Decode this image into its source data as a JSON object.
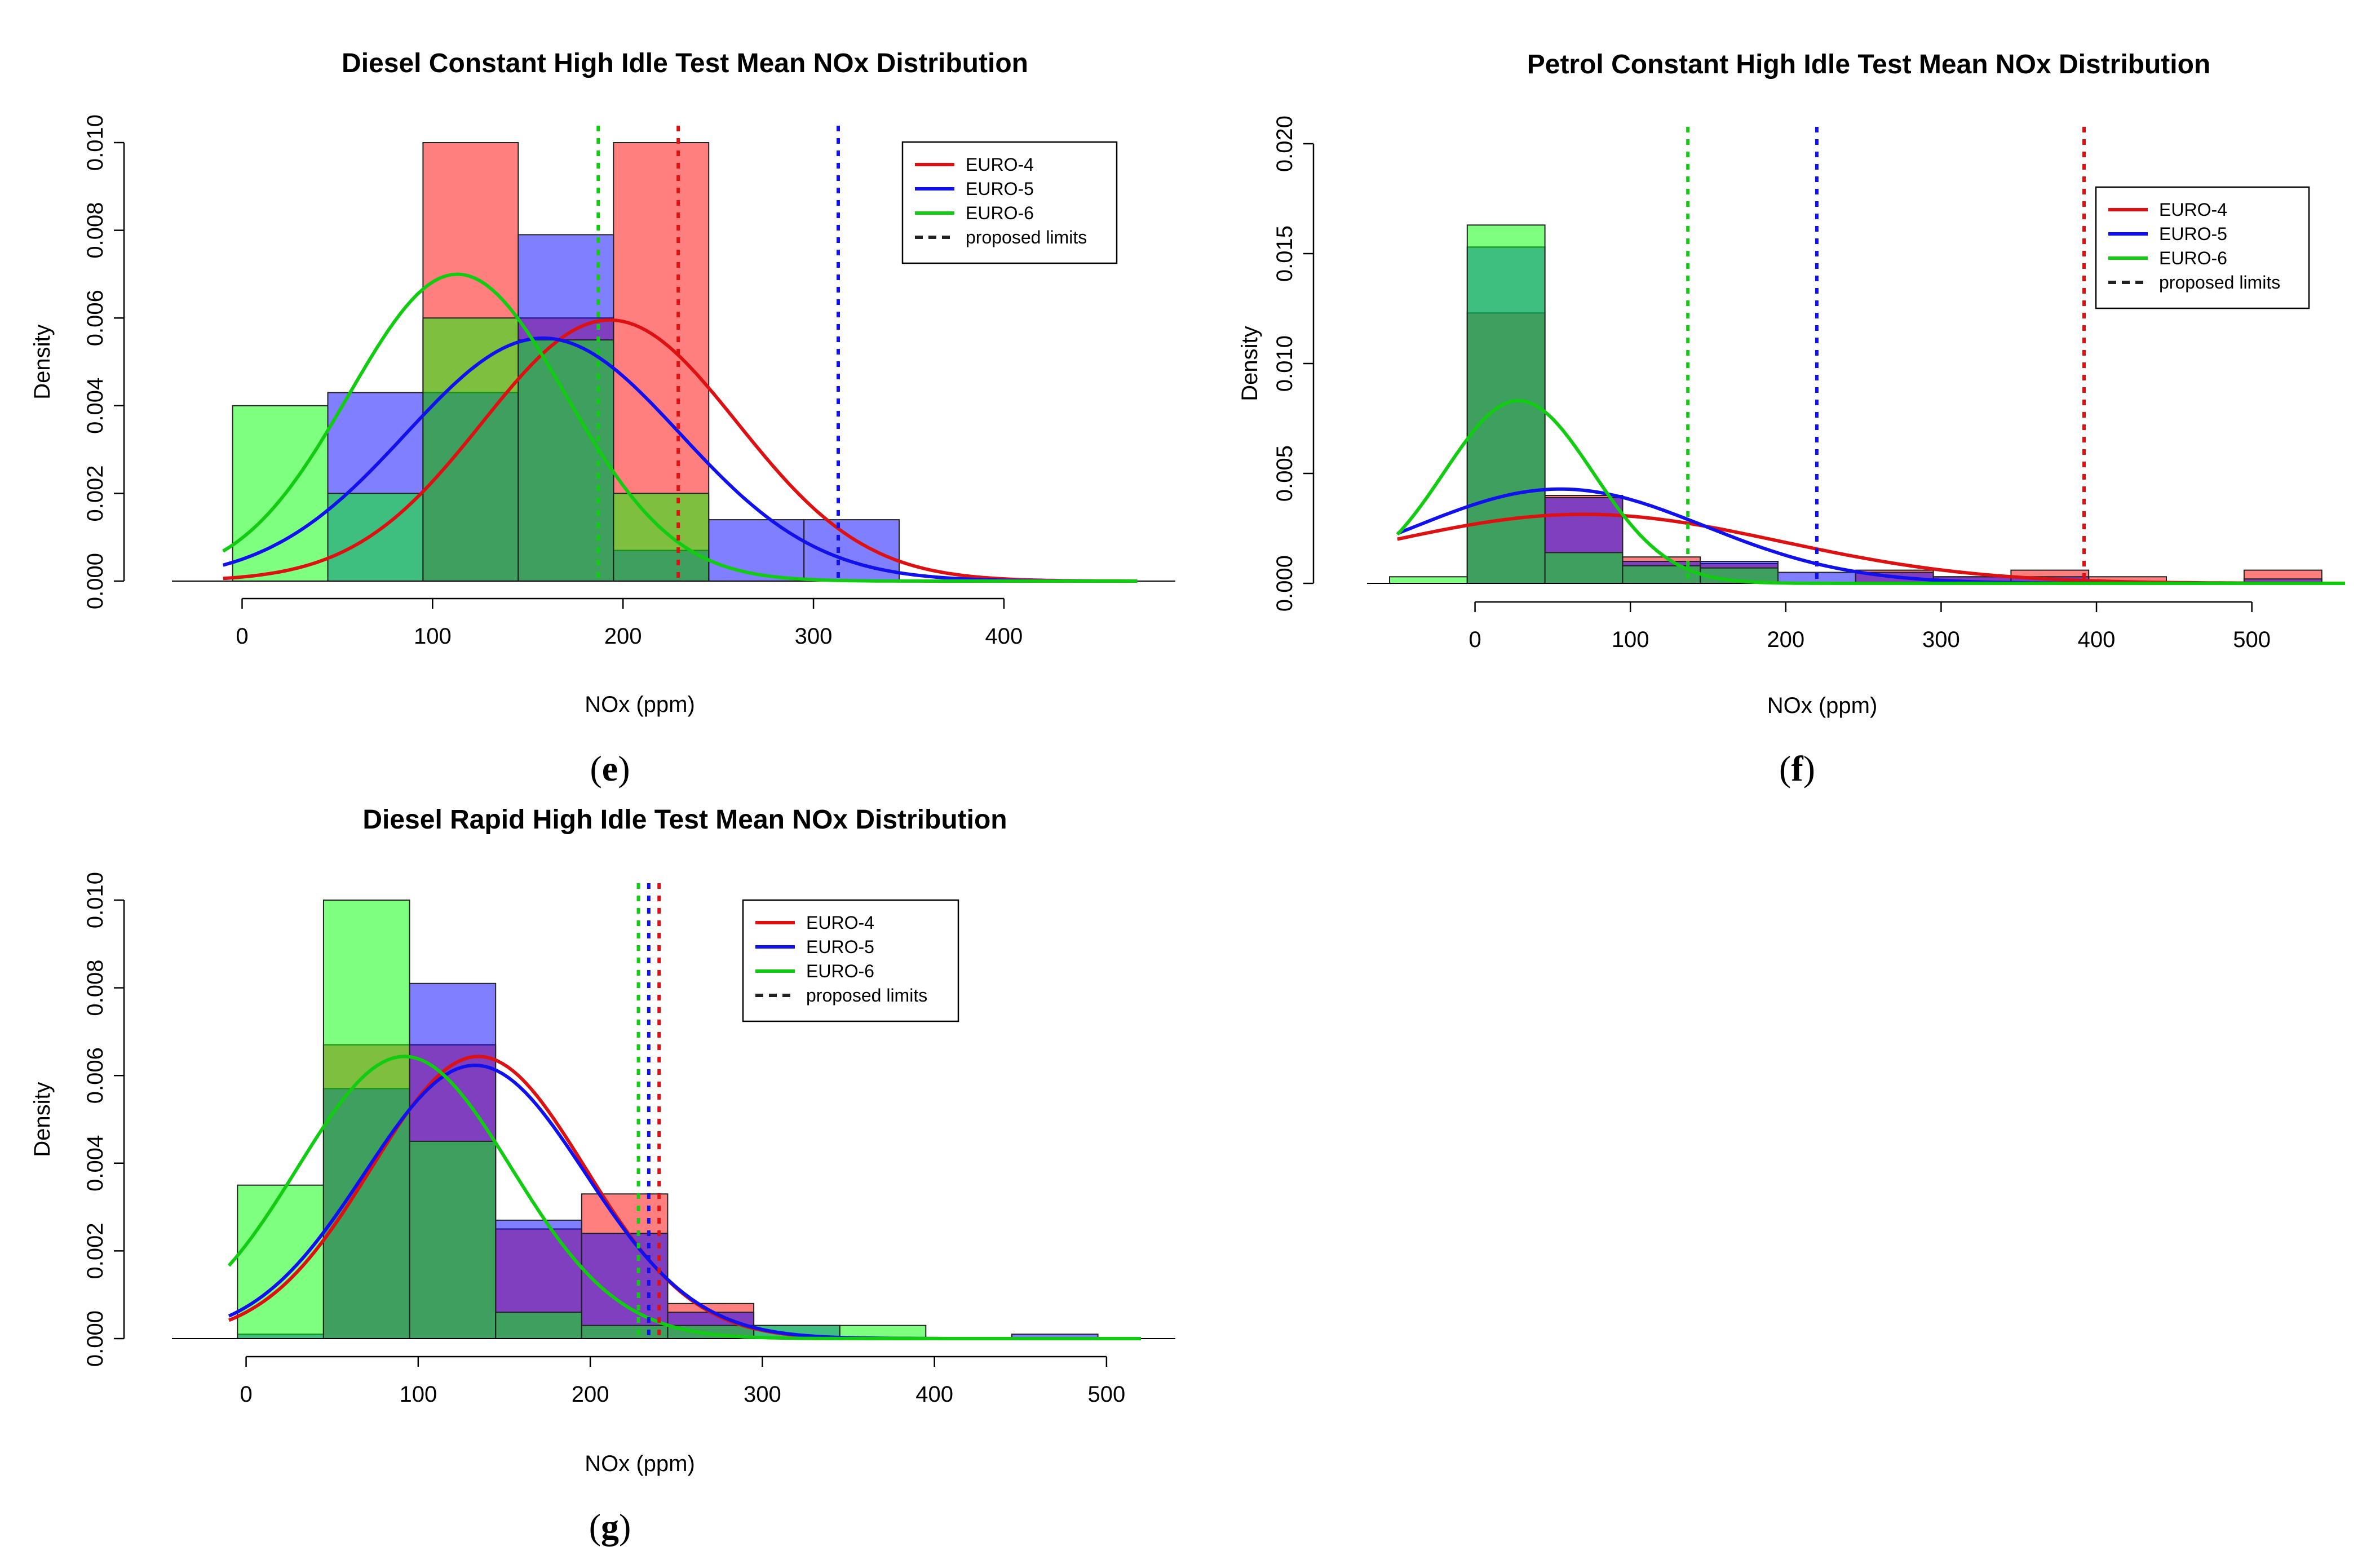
{
  "colors": {
    "euro4": "#dd1111",
    "euro5": "#1111ee",
    "euro6": "#11cc11",
    "proposed": "#222222",
    "bar_euro4": "rgba(255,0,0,0.5)",
    "bar_euro5": "rgba(0,0,255,0.5)",
    "bar_euro6": "rgba(0,255,0,0.5)"
  },
  "chart_data": [
    {
      "id": "e",
      "caption": "e",
      "type": "bar",
      "title": "Diesel Constant High Idle Test Mean NOx Distribution",
      "xlabel": "NOx (ppm)",
      "ylabel": "Density",
      "xlim": [
        -25,
        490
      ],
      "ylim": [
        0,
        0.01
      ],
      "xticks": [
        0,
        100,
        200,
        300,
        400
      ],
      "xtick_labels": [
        "0",
        "100",
        "200",
        "300",
        "400"
      ],
      "yticks": [
        0,
        0.002,
        0.004,
        0.006,
        0.008,
        0.01
      ],
      "ytick_labels": [
        "0.000",
        "0.002",
        "0.004",
        "0.006",
        "0.008",
        "0.010"
      ],
      "curve_range": [
        -10,
        470
      ],
      "legend_position": "top-right",
      "legend": [
        "EURO-4",
        "EURO-5",
        "EURO-6",
        "proposed limits"
      ],
      "series": [
        {
          "name": "EURO-4",
          "color_key": "euro4",
          "bins": [
            [
              95,
              145,
              0.01
            ],
            [
              145,
              195,
              0.006
            ],
            [
              195,
              245,
              0.01
            ],
            [
              245,
              295,
              0.0
            ],
            [
              295,
              345,
              0.0
            ]
          ],
          "mean": 193,
          "sd": 67,
          "limit": 229
        },
        {
          "name": "EURO-5",
          "color_key": "euro5",
          "bins": [
            [
              45,
              95,
              0.0043
            ],
            [
              95,
              145,
              0.0043
            ],
            [
              145,
              195,
              0.0079
            ],
            [
              195,
              245,
              0.0007
            ],
            [
              245,
              295,
              0.0014
            ],
            [
              295,
              345,
              0.0014
            ]
          ],
          "mean": 158,
          "sd": 72,
          "limit": 313
        },
        {
          "name": "EURO-6",
          "color_key": "euro6",
          "bins": [
            [
              -5,
              45,
              0.004
            ],
            [
              45,
              95,
              0.002
            ],
            [
              95,
              145,
              0.006
            ],
            [
              145,
              195,
              0.0055
            ],
            [
              195,
              245,
              0.002
            ]
          ],
          "mean": 113,
          "sd": 57,
          "limit": 187
        }
      ]
    },
    {
      "id": "f",
      "caption": "f",
      "type": "bar",
      "title": "Petrol Constant High Idle Test Mean NOx Distribution",
      "xlabel": "NOx (ppm)",
      "ylabel": "Density",
      "xlim": [
        -55,
        560
      ],
      "ylim": [
        0,
        0.02
      ],
      "xticks": [
        0,
        100,
        200,
        300,
        400,
        500
      ],
      "xtick_labels": [
        "0",
        "100",
        "200",
        "300",
        "400",
        "500"
      ],
      "yticks": [
        0,
        0.005,
        0.01,
        0.015,
        0.02
      ],
      "ytick_labels": [
        "0.000",
        "0.005",
        "0.010",
        "0.015",
        "0.020"
      ],
      "curve_range": [
        -50,
        560
      ],
      "legend_position": "top-right",
      "legend": [
        "EURO-4",
        "EURO-5",
        "EURO-6",
        "proposed limits"
      ],
      "series": [
        {
          "name": "EURO-4",
          "color_key": "euro4",
          "bins": [
            [
              -5,
              45,
              0.0123
            ],
            [
              45,
              95,
              0.004
            ],
            [
              95,
              145,
              0.0012
            ],
            [
              145,
              195,
              0.0009
            ],
            [
              245,
              295,
              0.0006
            ],
            [
              295,
              345,
              0.0003
            ],
            [
              345,
              395,
              0.0006
            ],
            [
              395,
              445,
              0.0003
            ],
            [
              495,
              545,
              0.0006
            ]
          ],
          "mean": 70,
          "sd": 127,
          "limit": 392
        },
        {
          "name": "EURO-5",
          "color_key": "euro5",
          "bins": [
            [
              -5,
              45,
              0.0153
            ],
            [
              45,
              95,
              0.0039
            ],
            [
              95,
              145,
              0.001
            ],
            [
              145,
              195,
              0.001
            ],
            [
              195,
              245,
              0.0005
            ],
            [
              245,
              295,
              0.0005
            ],
            [
              295,
              345,
              0.0003
            ],
            [
              345,
              395,
              0.0003
            ],
            [
              495,
              545,
              0.0002
            ]
          ],
          "mean": 55,
          "sd": 93,
          "limit": 220
        },
        {
          "name": "EURO-6",
          "color_key": "euro6",
          "bins": [
            [
              -55,
              -5,
              0.0003
            ],
            [
              -5,
              45,
              0.0163
            ],
            [
              45,
              95,
              0.0014
            ],
            [
              95,
              145,
              0.0008
            ],
            [
              145,
              195,
              0.0007
            ]
          ],
          "mean": 28,
          "sd": 48,
          "limit": 137
        }
      ]
    },
    {
      "id": "g",
      "caption": "g",
      "type": "bar",
      "title": "Diesel Rapid High Idle Test Mean NOx Distribution",
      "xlabel": "NOx (ppm)",
      "ylabel": "Density",
      "xlim": [
        -30,
        540
      ],
      "ylim": [
        0,
        0.01
      ],
      "xticks": [
        0,
        100,
        200,
        300,
        400,
        500
      ],
      "xtick_labels": [
        "0",
        "100",
        "200",
        "300",
        "400",
        "500"
      ],
      "yticks": [
        0,
        0.002,
        0.004,
        0.006,
        0.008,
        0.01
      ],
      "ytick_labels": [
        "0.000",
        "0.002",
        "0.004",
        "0.006",
        "0.008",
        "0.010"
      ],
      "curve_range": [
        -10,
        520
      ],
      "legend_position": "top-right",
      "legend": [
        "EURO-4",
        "EURO-5",
        "EURO-6",
        "proposed limits"
      ],
      "series": [
        {
          "name": "EURO-4",
          "color_key": "euro4",
          "bins": [
            [
              45,
              95,
              0.0067
            ],
            [
              95,
              145,
              0.0067
            ],
            [
              145,
              195,
              0.0025
            ],
            [
              195,
              245,
              0.0033
            ],
            [
              245,
              295,
              0.0008
            ]
          ],
          "mean": 135,
          "sd": 62,
          "limit": 240
        },
        {
          "name": "EURO-5",
          "color_key": "euro5",
          "bins": [
            [
              -5,
              45,
              0.0001
            ],
            [
              45,
              95,
              0.0057
            ],
            [
              95,
              145,
              0.0081
            ],
            [
              145,
              195,
              0.0027
            ],
            [
              195,
              245,
              0.0024
            ],
            [
              245,
              295,
              0.0006
            ],
            [
              295,
              345,
              0.0003
            ],
            [
              445,
              495,
              0.0001
            ]
          ],
          "mean": 133,
          "sd": 64,
          "limit": 234
        },
        {
          "name": "EURO-6",
          "color_key": "euro6",
          "bins": [
            [
              -5,
              45,
              0.0035
            ],
            [
              45,
              95,
              0.01
            ],
            [
              95,
              145,
              0.0045
            ],
            [
              145,
              195,
              0.0006
            ],
            [
              195,
              245,
              0.0003
            ],
            [
              245,
              295,
              0.0003
            ],
            [
              295,
              345,
              0.0003
            ],
            [
              345,
              395,
              0.0003
            ]
          ],
          "mean": 92,
          "sd": 62,
          "limit": 228
        }
      ]
    }
  ]
}
